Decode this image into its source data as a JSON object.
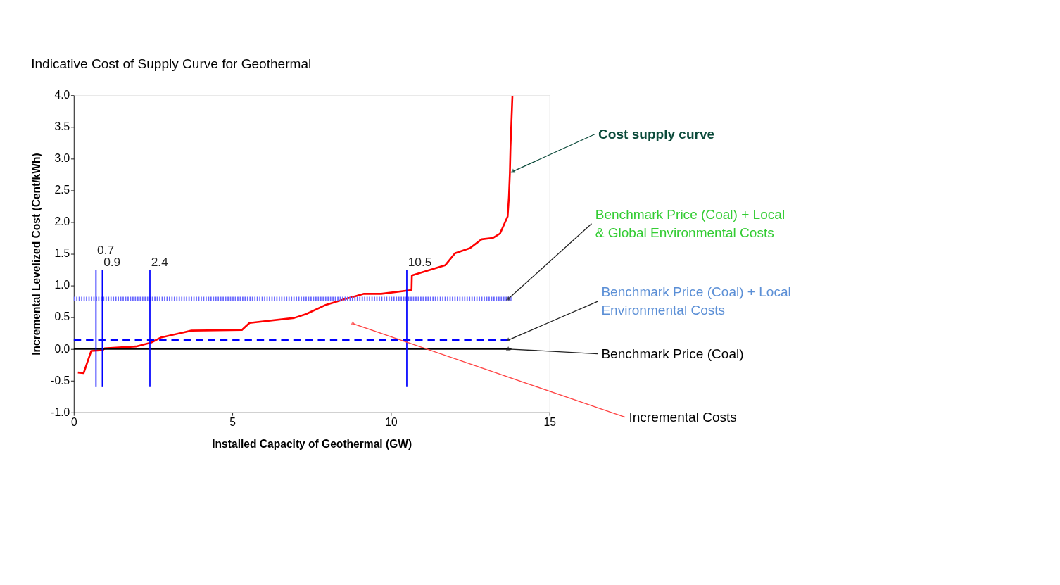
{
  "chart_data": {
    "type": "line",
    "title": "Indicative Cost of Supply Curve for Geothermal",
    "xlabel": "Installed Capacity of Geothermal (GW)",
    "ylabel": "Incremental Levelized Cost (Cent/kWh)",
    "x": [
      0.13,
      0.31,
      0.55,
      0.91,
      0.97,
      1.96,
      2.43,
      2.74,
      3.71,
      5.3,
      5.54,
      6.95,
      7.32,
      7.92,
      8.5,
      9.15,
      9.69,
      10.65,
      10.66,
      11.71,
      12.02,
      12.49,
      12.86,
      13.21,
      13.44,
      13.68,
      13.72,
      13.75,
      13.77,
      13.83
    ],
    "series": [
      {
        "color": "#ff0000",
        "values": [
          -0.37,
          -0.38,
          -0.03,
          -0.02,
          0.01,
          0.04,
          0.1,
          0.18,
          0.29,
          0.3,
          0.41,
          0.49,
          0.55,
          0.69,
          0.78,
          0.87,
          0.87,
          0.93,
          1.16,
          1.32,
          1.51,
          1.59,
          1.73,
          1.75,
          1.82,
          2.09,
          2.4,
          2.77,
          3.19,
          3.99
        ]
      }
    ],
    "xlim": [
      0,
      15
    ],
    "xticks": [
      0,
      5,
      10,
      15
    ],
    "ylim": [
      -1,
      4
    ],
    "yticks": [
      {
        "value": -1,
        "label": "-1.0"
      },
      {
        "value": -0.5,
        "label": "-0.5"
      },
      {
        "value": 0,
        "label": "0.0"
      },
      {
        "value": 0.5,
        "label": "0.5"
      },
      {
        "value": 1,
        "label": "1.0"
      },
      {
        "value": 1.5,
        "label": "1.5"
      },
      {
        "value": 2,
        "label": "2.0"
      },
      {
        "value": 2.5,
        "label": "2.5"
      },
      {
        "value": 3,
        "label": "3.0"
      },
      {
        "value": 3.5,
        "label": "3.5"
      },
      {
        "value": 4,
        "label": "4.0"
      }
    ],
    "grid": false,
    "marker": "none",
    "line_style": "solid",
    "ref_lines": [
      {
        "axis": "y",
        "value": 0,
        "color": "#000000",
        "line_style": "solid"
      },
      {
        "axis": "y",
        "value": 0.14,
        "color": "#0000ff",
        "line_style": "dashed"
      },
      {
        "axis": "y",
        "value": 0.79,
        "color": "#6666ff",
        "line_style": "dotted"
      },
      {
        "axis": "x",
        "value": 0.7,
        "label": "0.7",
        "color": "#0000ff"
      },
      {
        "axis": "x",
        "value": 0.9,
        "label": "0.9",
        "color": "#0000ff"
      },
      {
        "axis": "x",
        "value": 2.4,
        "label": "2.4",
        "color": "#0000ff"
      },
      {
        "axis": "x",
        "value": 10.5,
        "label": "10.5",
        "color": "#0000ff"
      }
    ],
    "annotations": [
      {
        "text": "Cost supply curve",
        "x": 13.85,
        "y": 2.8
      },
      {
        "text": "Benchmark Price (Coal) + Local\n& Global Environmental Costs",
        "x": 13.7,
        "y": 0.79
      },
      {
        "text": "Benchmark Price (Coal) + Local\nEnvironmental Costs",
        "x": 13.7,
        "y": 0.14
      },
      {
        "text": "Benchmark Price (Coal)",
        "x": 13.7,
        "y": 0
      },
      {
        "text": "Incremental Costs",
        "x": 8.8,
        "y": 0.4
      }
    ]
  }
}
